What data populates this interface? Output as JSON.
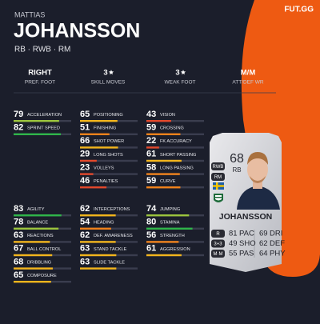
{
  "header": {
    "first_name": "MATTIAS",
    "last_name": "JOHANSSON",
    "positions": "RB · RWB · RM",
    "logo": "FUT.GG"
  },
  "info": [
    {
      "value": "RIGHT",
      "label": "PREF. FOOT"
    },
    {
      "value": "3",
      "label": "SKILL MOVES"
    },
    {
      "value": "3",
      "label": "WEAK FOOT"
    },
    {
      "value": "M/M",
      "label": "ATT/DEF WR"
    }
  ],
  "stat_groups": [
    [
      [
        {
          "name": "ACCELERATION",
          "value": 79
        },
        {
          "name": "SPRINT SPEED",
          "value": 82
        }
      ],
      [
        {
          "name": "POSITIONING",
          "value": 65
        },
        {
          "name": "FINISHING",
          "value": 51
        },
        {
          "name": "SHOT POWER",
          "value": 66
        },
        {
          "name": "LONG SHOTS",
          "value": 29
        },
        {
          "name": "VOLLEYS",
          "value": 23
        },
        {
          "name": "PENALTIES",
          "value": 46
        }
      ],
      [
        {
          "name": "VISION",
          "value": 43
        },
        {
          "name": "CROSSING",
          "value": 59
        },
        {
          "name": "FK ACCURACY",
          "value": 22
        },
        {
          "name": "SHORT PASSING",
          "value": 61
        },
        {
          "name": "LONG PASSING",
          "value": 58
        },
        {
          "name": "CURVE",
          "value": 59
        }
      ]
    ],
    [
      [
        {
          "name": "AGILITY",
          "value": 83
        },
        {
          "name": "BALANCE",
          "value": 78
        },
        {
          "name": "REACTIONS",
          "value": 63
        },
        {
          "name": "BALL CONTROL",
          "value": 67
        },
        {
          "name": "DRIBBLING",
          "value": 68
        },
        {
          "name": "COMPOSURE",
          "value": 65
        }
      ],
      [
        {
          "name": "INTERCEPTIONS",
          "value": 62
        },
        {
          "name": "HEADING",
          "value": 54
        },
        {
          "name": "DEF. AWARENESS",
          "value": 62
        },
        {
          "name": "STAND TACKLE",
          "value": 63
        },
        {
          "name": "SLIDE TACKLE",
          "value": 63
        }
      ],
      [
        {
          "name": "JUMPING",
          "value": 74
        },
        {
          "name": "STAMINA",
          "value": 80
        },
        {
          "name": "STRENGTH",
          "value": 56
        },
        {
          "name": "AGGRESSION",
          "value": 61
        }
      ]
    ]
  ],
  "card": {
    "rating": 68,
    "position": "RB",
    "alt_positions": [
      "RWB",
      "RM"
    ],
    "name": "JOHANSSON",
    "badges": [
      "R",
      "3+3",
      "M·M"
    ],
    "attributes": [
      [
        {
          "value": 81,
          "label": "PAC"
        },
        {
          "value": 69,
          "label": "DRI"
        }
      ],
      [
        {
          "value": 49,
          "label": "SHO"
        },
        {
          "value": 62,
          "label": "DEF"
        }
      ],
      [
        {
          "value": 55,
          "label": "PAS"
        },
        {
          "value": 64,
          "label": "PHY"
        }
      ]
    ]
  }
}
